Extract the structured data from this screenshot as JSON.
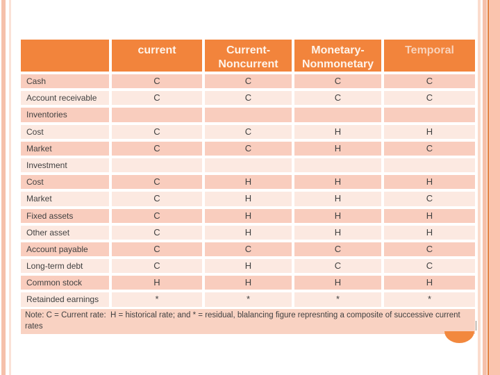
{
  "slide": {
    "table": {
      "columns": [
        "",
        "current",
        "Current-Noncurrent",
        "Monetary-Nonmonetary",
        "Temporal"
      ],
      "rows": [
        {
          "label": "Cash",
          "values": [
            "C",
            "C",
            "C",
            "C"
          ]
        },
        {
          "label": "Account receivable",
          "values": [
            "C",
            "C",
            "C",
            "C"
          ]
        },
        {
          "label": "Inventories",
          "values": [
            "",
            "",
            "",
            ""
          ]
        },
        {
          "label": "Cost",
          "values": [
            "C",
            "C",
            "H",
            "H"
          ]
        },
        {
          "label": "Market",
          "values": [
            "C",
            "C",
            "H",
            "C"
          ]
        },
        {
          "label": "Investment",
          "values": [
            "",
            "",
            "",
            ""
          ]
        },
        {
          "label": "Cost",
          "values": [
            "C",
            "H",
            "H",
            "H"
          ]
        },
        {
          "label": "Market",
          "values": [
            "C",
            "H",
            "H",
            "C"
          ]
        },
        {
          "label": "Fixed assets",
          "values": [
            "C",
            "H",
            "H",
            "H"
          ]
        },
        {
          "label": "Other asset",
          "values": [
            "C",
            "H",
            "H",
            "H"
          ]
        },
        {
          "label": "Account payable",
          "values": [
            "C",
            "C",
            "C",
            "C"
          ]
        },
        {
          "label": "Long-term debt",
          "values": [
            "C",
            "H",
            "C",
            "C"
          ]
        },
        {
          "label": "Common stock",
          "values": [
            "H",
            "H",
            "H",
            "H"
          ]
        },
        {
          "label": "Retainded earnings",
          "values": [
            "*",
            "*",
            "*",
            "*"
          ]
        }
      ],
      "note": "Note: C = Current rate:  H = historical rate; and * = residual, blalancing figure represnting a composite of successive current rates"
    },
    "colors": {
      "header_bg": "#F2843C",
      "header_text": "#FEF4EB",
      "header_text_temporal": "#F9D2BA",
      "row_dark": "#F9CDBE",
      "row_light": "#FCE9E1",
      "note_bg": "#F9D2C2",
      "body_text": "#404040",
      "accent_circle": "#F2883E",
      "stripe_salmon": "#F5C0AA",
      "stripe_faint": "#FBE2D7",
      "stripe_right_light": "#FBDCCD",
      "stripe_dark_line": "#E07E3C",
      "stripe_band": "#FAC4AE"
    }
  }
}
